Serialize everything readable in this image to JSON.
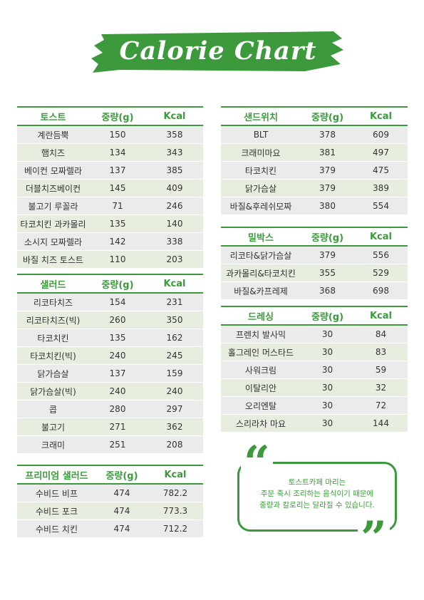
{
  "title": "Calorie Chart",
  "colors": {
    "accent": "#3c9a3c",
    "row_a": "#ebebeb",
    "row_b": "#e7eedf"
  },
  "toast": {
    "headers": [
      "토스트",
      "중량(g)",
      "Kcal"
    ],
    "rows": [
      [
        "계란듬뿍",
        "150",
        "358"
      ],
      [
        "햄치즈",
        "134",
        "343"
      ],
      [
        "베이컨 모짜렐라",
        "137",
        "385"
      ],
      [
        "더블치즈베이컨",
        "145",
        "409"
      ],
      [
        "불고기 루꼴라",
        "71",
        "246"
      ],
      [
        "타코치킨 과카몰리",
        "135",
        "140"
      ],
      [
        "소시지 모짜렐라",
        "142",
        "338"
      ],
      [
        "바질 치즈 토스트",
        "110",
        "203"
      ]
    ]
  },
  "salad": {
    "headers": [
      "샐러드",
      "중량(g)",
      "Kcal"
    ],
    "rows": [
      [
        "리코타치즈",
        "154",
        "231"
      ],
      [
        "리코타치즈(빅)",
        "260",
        "350"
      ],
      [
        "타코치킨",
        "135",
        "162"
      ],
      [
        "타코치킨(빅)",
        "240",
        "245"
      ],
      [
        "닭가슴살",
        "137",
        "159"
      ],
      [
        "닭가슴살(빅)",
        "240",
        "240"
      ],
      [
        "콥",
        "280",
        "297"
      ],
      [
        "불고기",
        "271",
        "362"
      ],
      [
        "크래미",
        "251",
        "208"
      ]
    ]
  },
  "premium_salad": {
    "headers": [
      "프리미엄 샐러드",
      "중량(g)",
      "Kcal"
    ],
    "rows": [
      [
        "수비드 비프",
        "474",
        "782.2"
      ],
      [
        "수비드 포크",
        "474",
        "773.3"
      ],
      [
        "수비드 치킨",
        "474",
        "712.2"
      ]
    ]
  },
  "sandwich": {
    "headers": [
      "샌드위치",
      "중량(g)",
      "Kcal"
    ],
    "rows": [
      [
        "BLT",
        "378",
        "609"
      ],
      [
        "크래미마요",
        "381",
        "497"
      ],
      [
        "타코치킨",
        "379",
        "475"
      ],
      [
        "닭가슴살",
        "379",
        "389"
      ],
      [
        "바질&후레쉬모짜",
        "380",
        "554"
      ]
    ]
  },
  "milbox": {
    "headers": [
      "밀박스",
      "중량(g)",
      "Kcal"
    ],
    "rows": [
      [
        "리코타&닭가슴살",
        "379",
        "556"
      ],
      [
        "과카몰리&타코치킨",
        "355",
        "529"
      ],
      [
        "바질&카프레제",
        "368",
        "698"
      ]
    ]
  },
  "dressing": {
    "headers": [
      "드레싱",
      "중량(g)",
      "Kcal"
    ],
    "rows": [
      [
        "프렌치 발사믹",
        "30",
        "84"
      ],
      [
        "홀그레인 머스타드",
        "30",
        "83"
      ],
      [
        "사워크림",
        "30",
        "59"
      ],
      [
        "이탈리안",
        "30",
        "32"
      ],
      [
        "오리엔탈",
        "30",
        "72"
      ],
      [
        "스리라차 마요",
        "30",
        "144"
      ]
    ]
  },
  "note": {
    "lines": [
      "토스트카페 마리는",
      "주문 즉시 조리하는 음식이기 때문에",
      "중량과 칼로리는 달라질 수 있습니다."
    ]
  }
}
